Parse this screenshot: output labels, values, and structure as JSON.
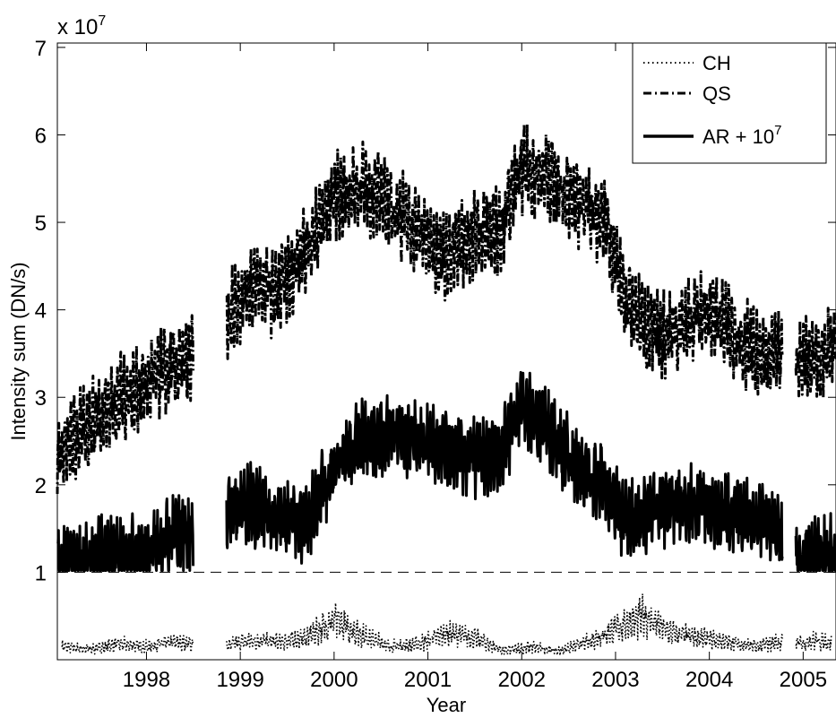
{
  "chart_data": {
    "type": "line",
    "title": "",
    "xlabel": "Year",
    "ylabel": "Intensity sum (DN/s)",
    "y_multiplier_label": "x 10",
    "y_multiplier_exponent": "7",
    "xlim": [
      1997.05,
      2005.35
    ],
    "ylim": [
      0,
      7.05
    ],
    "x_ticks": [
      1998,
      1999,
      2000,
      2001,
      2002,
      2003,
      2004,
      2005
    ],
    "x_tick_labels": [
      "1998",
      "1999",
      "2000",
      "2001",
      "2002",
      "2003",
      "2004",
      "2005"
    ],
    "y_ticks": [
      1,
      2,
      3,
      4,
      5,
      6,
      7
    ],
    "y_tick_labels": [
      "1",
      "2",
      "3",
      "4",
      "5",
      "6",
      "7"
    ],
    "reference_line": {
      "y": 1.0,
      "style": "dashed"
    },
    "legend": {
      "position": "top-right",
      "entries": [
        {
          "label": "CH",
          "style": "dotted"
        },
        {
          "label": "QS",
          "style": "dash-dot"
        },
        {
          "label_main": "AR + 10",
          "label_sup": "7",
          "style": "solid"
        }
      ]
    },
    "series": [
      {
        "name": "CH",
        "style": "dotted",
        "x": [
          1997.1,
          1997.4,
          1997.7,
          1998.0,
          1998.3,
          1998.5,
          1998.8,
          1999.1,
          1999.4,
          1999.7,
          2000.0,
          2000.3,
          2000.6,
          2000.9,
          2001.2,
          2001.5,
          2001.8,
          2002.1,
          2002.4,
          2002.7,
          2003.0,
          2003.3,
          2003.6,
          2003.9,
          2004.2,
          2004.5,
          2004.7,
          2004.9,
          2005.1,
          2005.3
        ],
        "values": [
          0.15,
          0.12,
          0.18,
          0.15,
          0.2,
          0.18,
          0.15,
          0.22,
          0.2,
          0.25,
          0.45,
          0.28,
          0.15,
          0.18,
          0.3,
          0.25,
          0.1,
          0.15,
          0.1,
          0.2,
          0.35,
          0.5,
          0.3,
          0.25,
          0.2,
          0.15,
          0.2,
          0.18,
          0.22,
          0.2
        ]
      },
      {
        "name": "QS",
        "style": "dash-dot",
        "x": [
          1997.05,
          1997.3,
          1997.6,
          1997.9,
          1998.2,
          1998.45,
          1998.85,
          1999.1,
          1999.4,
          1999.7,
          2000.0,
          2000.3,
          2000.6,
          2000.9,
          2001.2,
          2001.5,
          2001.75,
          2002.0,
          2002.3,
          2002.6,
          2002.9,
          2003.1,
          2003.4,
          2003.7,
          2004.0,
          2004.3,
          2004.6,
          2004.75,
          2004.95,
          2005.15,
          2005.35
        ],
        "values": [
          2.3,
          2.6,
          2.9,
          3.1,
          3.3,
          3.4,
          3.9,
          4.3,
          4.2,
          4.7,
          5.3,
          5.4,
          5.2,
          4.9,
          4.6,
          4.9,
          4.9,
          5.6,
          5.5,
          5.2,
          5.0,
          4.1,
          3.7,
          3.8,
          4.0,
          3.7,
          3.4,
          3.5,
          3.4,
          3.5,
          3.6
        ]
      },
      {
        "name": "AR + 10^7",
        "style": "solid",
        "x": [
          1997.05,
          1997.3,
          1997.6,
          1997.9,
          1998.2,
          1998.45,
          1998.85,
          1999.1,
          1999.4,
          1999.7,
          2000.0,
          2000.3,
          2000.6,
          2000.9,
          2001.2,
          2001.5,
          2001.75,
          2002.0,
          2002.3,
          2002.6,
          2002.9,
          2003.1,
          2003.4,
          2003.7,
          2004.0,
          2004.3,
          2004.6,
          2004.75,
          2004.95,
          2005.15,
          2005.35
        ],
        "values": [
          1.1,
          1.1,
          1.2,
          1.2,
          1.35,
          1.45,
          1.7,
          1.8,
          1.6,
          1.6,
          2.2,
          2.5,
          2.6,
          2.5,
          2.4,
          2.3,
          2.3,
          2.9,
          2.6,
          2.2,
          2.0,
          1.6,
          1.7,
          1.8,
          1.75,
          1.6,
          1.6,
          1.5,
          1.15,
          1.15,
          1.2
        ]
      }
    ],
    "gaps": [
      [
        1998.5,
        1998.85
      ],
      [
        2004.78,
        2004.92
      ]
    ]
  }
}
